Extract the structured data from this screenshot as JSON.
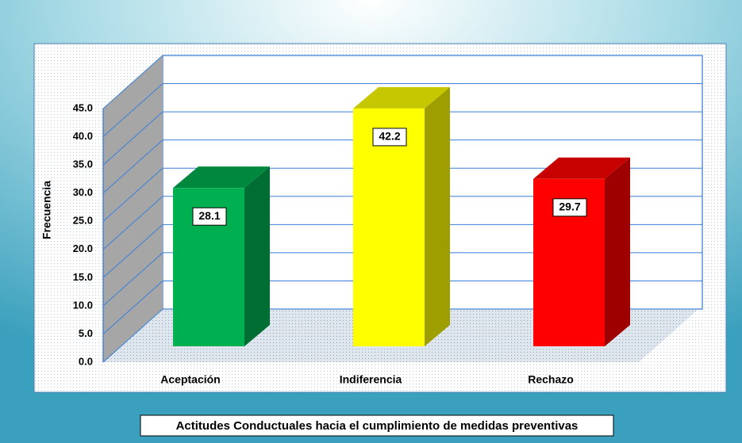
{
  "chart_data": {
    "type": "bar3d",
    "categories": [
      "Aceptación",
      "Indiferencia",
      "Rechazo"
    ],
    "series": [
      {
        "name": null,
        "colors": [
          "#00b050",
          "#ffff00",
          "#ff0000"
        ],
        "values": [
          28.1,
          42.2,
          29.7
        ]
      }
    ],
    "ylabel": "Frecuencia",
    "xlabel": "Actitudes Conductuales hacia el cumplimiento de medidas preventivas",
    "ylim": [
      0,
      45
    ],
    "yticks": [
      {
        "value": 0,
        "label": "0.0"
      },
      {
        "value": 5,
        "label": "5.0"
      },
      {
        "value": 10,
        "label": "10.0"
      },
      {
        "value": 15,
        "label": "15.0"
      },
      {
        "value": 20,
        "label": "20.0"
      },
      {
        "value": 25,
        "label": "25.0"
      },
      {
        "value": 30,
        "label": "30.0"
      },
      {
        "value": 35,
        "label": "35.0"
      },
      {
        "value": 40,
        "label": "40.0"
      },
      {
        "value": 45,
        "label": "45.0"
      }
    ],
    "grid": true
  }
}
